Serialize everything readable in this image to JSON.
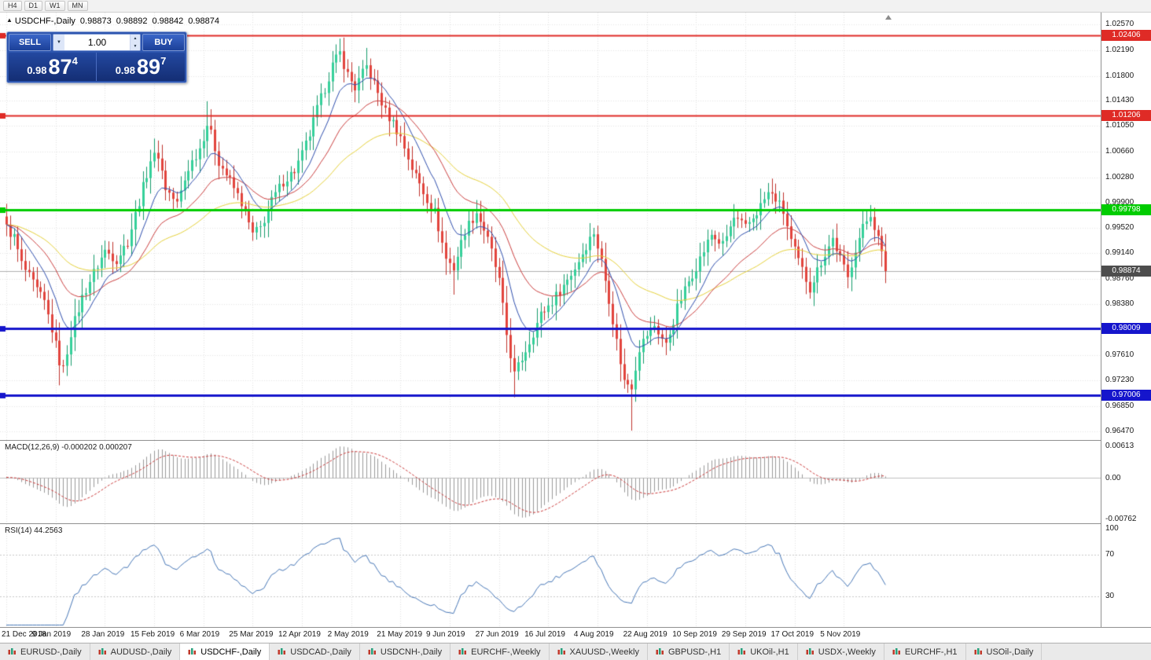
{
  "toolbar": {
    "timeframes": [
      "H4",
      "D1",
      "W1",
      "MN"
    ]
  },
  "chart_header": {
    "collapse_icon": "▲",
    "title": "USDCHF-,Daily",
    "open": "0.98873",
    "high": "0.98892",
    "low": "0.98842",
    "close": "0.98874"
  },
  "trade_panel": {
    "sell_label": "SELL",
    "buy_label": "BUY",
    "volume": "1.00",
    "dropdown_icon": "▼",
    "spin_up_icon": "▲",
    "spin_down_icon": "▼",
    "bid": {
      "prefix": "0.98",
      "big": "87",
      "sup": "4"
    },
    "ask": {
      "prefix": "0.98",
      "big": "89",
      "sup": "7"
    }
  },
  "chart_data": {
    "type": "candlestick",
    "symbol": "USDCHF-",
    "timeframe": "Daily",
    "current_bar": {
      "open": 0.98873,
      "high": 0.98892,
      "low": 0.98842,
      "close": 0.98874
    },
    "up_color": "#35d09a",
    "up_border": "#159b6c",
    "down_color": "#e2443d",
    "down_border": "#bf332e",
    "price_axis": {
      "max": 1.0275,
      "min": 0.9634,
      "labels": [
        "1.02570",
        "1.02190",
        "1.01800",
        "1.01430",
        "1.01050",
        "1.00660",
        "1.00280",
        "0.99900",
        "0.99520",
        "0.99140",
        "0.98760",
        "0.98380",
        "0.98000",
        "0.97610",
        "0.97230",
        "0.96850",
        "0.96470"
      ]
    },
    "date_axis": {
      "bars_per_label": 13,
      "labels": [
        "21 Dec 2018",
        "9 Jan 2019",
        "28 Jan 2019",
        "15 Feb 2019",
        "6 Mar 2019",
        "25 Mar 2019",
        "12 Apr 2019",
        "2 May 2019",
        "21 May 2019",
        "9 Jun 2019",
        "27 Jun 2019",
        "16 Jul 2019",
        "4 Aug 2019",
        "22 Aug 2019",
        "10 Sep 2019",
        "29 Sep 2019",
        "17 Oct 2019",
        "5 Nov 2019"
      ]
    },
    "levels": [
      {
        "price": 1.02406,
        "label": "1.02406",
        "color": "#df2b26",
        "width": 2,
        "type": "resistance"
      },
      {
        "price": 1.01206,
        "label": "1.01206",
        "color": "#df2b26",
        "width": 2,
        "type": "resistance"
      },
      {
        "price": 0.99798,
        "label": "0.99798",
        "color": "#00cc00",
        "width": 3,
        "type": "pivot"
      },
      {
        "price": 0.98009,
        "label": "0.98009",
        "color": "#1515cc",
        "width": 3,
        "type": "support"
      },
      {
        "price": 0.97006,
        "label": "0.97006",
        "color": "#1515cc",
        "width": 3,
        "type": "support"
      }
    ],
    "current_price": {
      "price": 0.98874,
      "label": "0.98874",
      "color": "#4d4d4d"
    },
    "moving_averages": [
      {
        "period": 52,
        "color": "#e6d23c"
      },
      {
        "period": 24,
        "color": "#cc4040"
      },
      {
        "period": 10,
        "color": "#2f4fae"
      }
    ],
    "candles": {
      "count": 233,
      "noise": 0.0016,
      "close_anchors": [
        [
          0,
          0.9952
        ],
        [
          2,
          0.9938
        ],
        [
          4,
          0.9898
        ],
        [
          6,
          0.9878
        ],
        [
          8,
          0.9858
        ],
        [
          10,
          0.984
        ],
        [
          12,
          0.98
        ],
        [
          14,
          0.9752
        ],
        [
          15,
          0.974
        ],
        [
          17,
          0.9795
        ],
        [
          20,
          0.9848
        ],
        [
          23,
          0.9885
        ],
        [
          26,
          0.9918
        ],
        [
          29,
          0.9905
        ],
        [
          32,
          0.9932
        ],
        [
          35,
          0.9992
        ],
        [
          38,
          1.0055
        ],
        [
          40,
          1.0062
        ],
        [
          42,
          1.0012
        ],
        [
          45,
          0.9988
        ],
        [
          48,
          1.0042
        ],
        [
          51,
          1.0072
        ],
        [
          53,
          1.0108
        ],
        [
          54,
          1.0092
        ],
        [
          56,
          1.0052
        ],
        [
          59,
          1.0022
        ],
        [
          62,
          0.999
        ],
        [
          65,
          0.9942
        ],
        [
          67,
          0.9952
        ],
        [
          70,
          0.9992
        ],
        [
          73,
          1.0022
        ],
        [
          76,
          1.0038
        ],
        [
          78,
          1.0062
        ],
        [
          80,
          1.0092
        ],
        [
          82,
          1.013
        ],
        [
          84,
          1.0162
        ],
        [
          86,
          1.0196
        ],
        [
          88,
          1.0214
        ],
        [
          90,
          1.0182
        ],
        [
          92,
          1.0162
        ],
        [
          95,
          1.0194
        ],
        [
          97,
          1.0168
        ],
        [
          100,
          1.0126
        ],
        [
          102,
          1.011
        ],
        [
          104,
          1.0088
        ],
        [
          107,
          1.0042
        ],
        [
          110,
          1.0006
        ],
        [
          113,
          0.9976
        ],
        [
          116,
          0.9906
        ],
        [
          118,
          0.9892
        ],
        [
          121,
          0.9948
        ],
        [
          124,
          0.9976
        ],
        [
          126,
          0.995
        ],
        [
          128,
          0.9916
        ],
        [
          130,
          0.9872
        ],
        [
          132,
          0.9792
        ],
        [
          134,
          0.9732
        ],
        [
          136,
          0.9756
        ],
        [
          138,
          0.9782
        ],
        [
          141,
          0.9822
        ],
        [
          144,
          0.9842
        ],
        [
          147,
          0.9866
        ],
        [
          150,
          0.9892
        ],
        [
          153,
          0.9926
        ],
        [
          155,
          0.9946
        ],
        [
          157,
          0.9902
        ],
        [
          159,
          0.9846
        ],
        [
          161,
          0.9782
        ],
        [
          163,
          0.9722
        ],
        [
          165,
          0.9716
        ],
        [
          167,
          0.9772
        ],
        [
          169,
          0.9792
        ],
        [
          171,
          0.9806
        ],
        [
          174,
          0.9776
        ],
        [
          177,
          0.9832
        ],
        [
          180,
          0.9872
        ],
        [
          183,
          0.9906
        ],
        [
          186,
          0.9942
        ],
        [
          189,
          0.9926
        ],
        [
          192,
          0.9966
        ],
        [
          195,
          0.9952
        ],
        [
          198,
          0.9976
        ],
        [
          201,
          1.0004
        ],
        [
          203,
          0.9996
        ],
        [
          205,
          0.9976
        ],
        [
          207,
          0.9932
        ],
        [
          209,
          0.9902
        ],
        [
          212,
          0.9862
        ],
        [
          215,
          0.9902
        ],
        [
          218,
          0.9936
        ],
        [
          220,
          0.9906
        ],
        [
          222,
          0.9876
        ],
        [
          224,
          0.9922
        ],
        [
          226,
          0.9952
        ],
        [
          228,
          0.9974
        ],
        [
          230,
          0.9936
        ],
        [
          232,
          0.98874
        ]
      ],
      "wick_spikes": [
        {
          "i": 14,
          "low": 0.9716
        },
        {
          "i": 39,
          "high": 1.0086
        },
        {
          "i": 53,
          "high": 1.0142
        },
        {
          "i": 54,
          "high": 1.013
        },
        {
          "i": 88,
          "high": 1.0236
        },
        {
          "i": 95,
          "high": 1.0222
        },
        {
          "i": 118,
          "low": 0.9852
        },
        {
          "i": 134,
          "low": 0.9698
        },
        {
          "i": 165,
          "low": 0.9648
        },
        {
          "i": 202,
          "high": 1.0026
        },
        {
          "i": 228,
          "high": 0.9984
        }
      ]
    },
    "macd": {
      "label": "MACD(12,26,9) -0.000202 0.000207",
      "params": [
        12,
        26,
        9
      ],
      "current_macd": -0.000202,
      "current_signal": 0.000207,
      "axis_max": "0.00613",
      "axis_zero": "0.00",
      "axis_min": "-0.00762",
      "hist_color": "#9a9a9a",
      "signal_color": "#cc3b3b"
    },
    "rsi": {
      "label": "RSI(14) 44.2563",
      "period": 14,
      "current": 44.2563,
      "levels": [
        100,
        70,
        30
      ],
      "color": "#4878b8"
    }
  },
  "tabs": [
    {
      "label": "EURUSD-,Daily",
      "active": false
    },
    {
      "label": "AUDUSD-,Daily",
      "active": false
    },
    {
      "label": "USDCHF-,Daily",
      "active": true
    },
    {
      "label": "USDCAD-,Daily",
      "active": false
    },
    {
      "label": "USDCNH-,Daily",
      "active": false
    },
    {
      "label": "EURCHF-,Weekly",
      "active": false
    },
    {
      "label": "XAUUSD-,Weekly",
      "active": false
    },
    {
      "label": "GBPUSD-,H1",
      "active": false
    },
    {
      "label": "UKOil-,H1",
      "active": false
    },
    {
      "label": "USDX-,Weekly",
      "active": false
    },
    {
      "label": "EURCHF-,H1",
      "active": false
    },
    {
      "label": "USOil-,Daily",
      "active": false
    }
  ]
}
